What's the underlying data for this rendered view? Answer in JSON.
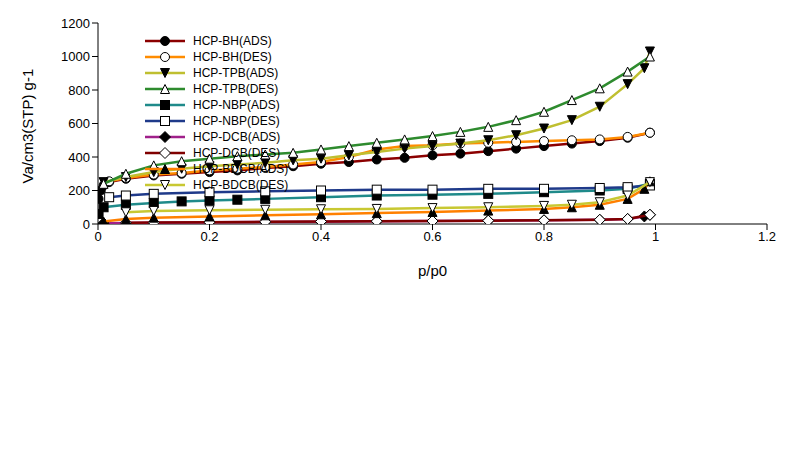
{
  "chart_data": {
    "type": "line",
    "x_label": "p/p0",
    "y_label": "Va/cm3(STP) g-1",
    "xlim": [
      0,
      1.2
    ],
    "xticks": [
      0,
      0.2,
      0.4,
      0.6,
      0.8,
      1,
      1.2
    ],
    "ylim": [
      0,
      1200
    ],
    "yticks": [
      0,
      200,
      400,
      600,
      800,
      1000,
      1200
    ],
    "grid": false,
    "legend": "top-left",
    "series": [
      {
        "name": "HCP-BH(ADS)",
        "color": "#8b0000",
        "marker": "filled_circle",
        "x": [
          0.001,
          0.005,
          0.01,
          0.02,
          0.05,
          0.1,
          0.15,
          0.2,
          0.25,
          0.3,
          0.35,
          0.4,
          0.45,
          0.5,
          0.55,
          0.6,
          0.65,
          0.7,
          0.75,
          0.8,
          0.85,
          0.9,
          0.95,
          0.99
        ],
        "values": [
          150,
          200,
          230,
          250,
          270,
          290,
          300,
          310,
          320,
          335,
          345,
          360,
          370,
          385,
          395,
          410,
          420,
          435,
          450,
          465,
          480,
          495,
          515,
          545
        ]
      },
      {
        "name": "HCP-BH(DES)",
        "color": "#ff8c00",
        "marker": "open_circle",
        "x": [
          0.99,
          0.95,
          0.9,
          0.85,
          0.8,
          0.75,
          0.7,
          0.65,
          0.6,
          0.55,
          0.5,
          0.45,
          0.4,
          0.35,
          0.3,
          0.25,
          0.2,
          0.15,
          0.1,
          0.05,
          0.02
        ],
        "values": [
          545,
          520,
          505,
          500,
          495,
          490,
          485,
          480,
          470,
          465,
          445,
          400,
          370,
          355,
          340,
          330,
          320,
          305,
          295,
          275,
          255
        ]
      },
      {
        "name": "HCP-TPB(ADS)",
        "color": "#bfbf30",
        "marker": "filled_down_triangle",
        "x": [
          0.01,
          0.05,
          0.1,
          0.15,
          0.2,
          0.25,
          0.3,
          0.35,
          0.4,
          0.45,
          0.5,
          0.55,
          0.6,
          0.65,
          0.7,
          0.75,
          0.8,
          0.85,
          0.9,
          0.95,
          0.98,
          0.99
        ],
        "values": [
          250,
          280,
          310,
          330,
          345,
          355,
          365,
          380,
          390,
          410,
          430,
          450,
          465,
          480,
          500,
          530,
          570,
          620,
          700,
          835,
          930,
          1030
        ]
      },
      {
        "name": "HCP-TPB(DES)",
        "color": "#2e8b2e",
        "marker": "open_up_triangle",
        "x": [
          0.99,
          0.95,
          0.9,
          0.85,
          0.8,
          0.75,
          0.7,
          0.65,
          0.6,
          0.55,
          0.5,
          0.45,
          0.4,
          0.35,
          0.3,
          0.25,
          0.2,
          0.15,
          0.1,
          0.05,
          0.01
        ],
        "values": [
          1000,
          910,
          810,
          740,
          670,
          620,
          580,
          550,
          525,
          505,
          485,
          465,
          445,
          425,
          415,
          405,
          390,
          375,
          350,
          300,
          240
        ]
      },
      {
        "name": "HCP-NBP(ADS)",
        "color": "#1f8a8a",
        "marker": "filled_square",
        "x": [
          0.001,
          0.01,
          0.05,
          0.1,
          0.15,
          0.2,
          0.25,
          0.3,
          0.4,
          0.5,
          0.6,
          0.7,
          0.8,
          0.9,
          0.95,
          0.99
        ],
        "values": [
          60,
          100,
          115,
          125,
          135,
          140,
          145,
          150,
          160,
          170,
          175,
          180,
          190,
          200,
          210,
          240
        ]
      },
      {
        "name": "HCP-NBP(DES)",
        "color": "#1f3a8a",
        "marker": "open_square",
        "x": [
          0.99,
          0.95,
          0.9,
          0.8,
          0.7,
          0.6,
          0.5,
          0.4,
          0.3,
          0.2,
          0.1,
          0.05,
          0.02
        ],
        "values": [
          230,
          220,
          215,
          210,
          210,
          205,
          205,
          200,
          195,
          190,
          180,
          170,
          160
        ]
      },
      {
        "name": "HCP-DCB(ADS)",
        "color": "#a0208a",
        "marker": "filled_diamond",
        "x": [
          0.01,
          0.1,
          0.2,
          0.3,
          0.4,
          0.5,
          0.6,
          0.7,
          0.8,
          0.9,
          0.95,
          0.98,
          0.99
        ],
        "values": [
          5,
          8,
          10,
          12,
          14,
          16,
          18,
          20,
          22,
          25,
          30,
          45,
          55
        ]
      },
      {
        "name": "HCP-DCB(DES)",
        "color": "#800000",
        "marker": "open_diamond",
        "x": [
          0.99,
          0.95,
          0.9,
          0.8,
          0.7,
          0.6,
          0.5,
          0.4,
          0.3,
          0.2,
          0.1,
          0.05
        ],
        "values": [
          55,
          30,
          25,
          22,
          20,
          18,
          17,
          15,
          13,
          11,
          9,
          7
        ]
      },
      {
        "name": "HCP-BDCB(ADS)",
        "color": "#ff8000",
        "marker": "filled_up_triangle",
        "x": [
          0.01,
          0.05,
          0.1,
          0.2,
          0.3,
          0.4,
          0.5,
          0.6,
          0.7,
          0.8,
          0.85,
          0.9,
          0.95,
          0.98,
          0.99
        ],
        "values": [
          15,
          30,
          38,
          45,
          52,
          58,
          65,
          72,
          80,
          90,
          100,
          115,
          150,
          210,
          255
        ]
      },
      {
        "name": "HCP-BDCB(DES)",
        "color": "#c8c832",
        "marker": "open_down_triangle",
        "x": [
          0.99,
          0.95,
          0.9,
          0.85,
          0.8,
          0.7,
          0.6,
          0.5,
          0.4,
          0.3,
          0.2,
          0.1,
          0.05
        ],
        "values": [
          250,
          170,
          130,
          115,
          108,
          100,
          95,
          90,
          88,
          85,
          82,
          78,
          70
        ]
      }
    ]
  }
}
